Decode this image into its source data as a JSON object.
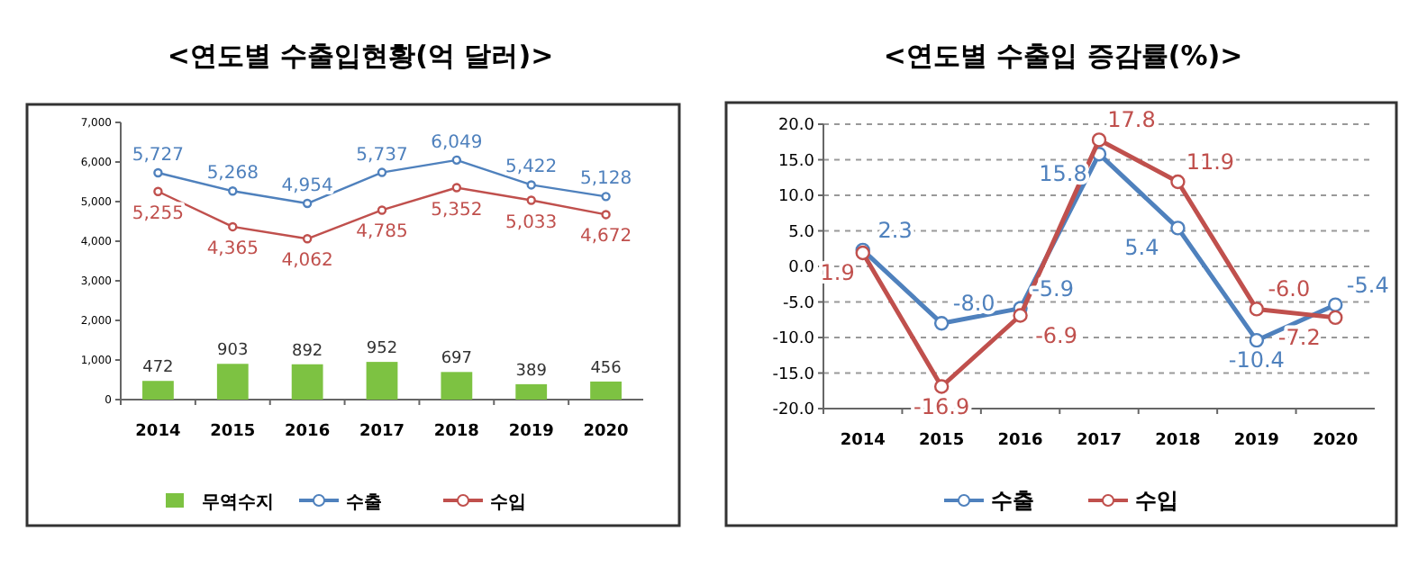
{
  "chart_data": [
    {
      "type": "bar",
      "title": "<연도별 수출입현황(억 달러)>",
      "categories": [
        "2014",
        "2015",
        "2016",
        "2017",
        "2018",
        "2019",
        "2020"
      ],
      "series": [
        {
          "name": "무역수지",
          "type": "bar",
          "color": "#7dc242",
          "values": [
            472,
            903,
            892,
            952,
            697,
            389,
            456
          ],
          "value_labels": [
            "472",
            "903",
            "892",
            "952",
            "697",
            "389",
            "456"
          ]
        },
        {
          "name": "수출",
          "type": "line",
          "color": "#4f81bd",
          "values": [
            5727,
            5268,
            4954,
            5737,
            6049,
            5422,
            5128
          ],
          "value_labels": [
            "5,727",
            "5,268",
            "4,954",
            "5,737",
            "6,049",
            "5,422",
            "5,128"
          ]
        },
        {
          "name": "수입",
          "type": "line",
          "color": "#c0504d",
          "values": [
            5255,
            4365,
            4062,
            4785,
            5352,
            5033,
            4672
          ],
          "value_labels": [
            "5,255",
            "4,365",
            "4,062",
            "4,785",
            "5,352",
            "5,033",
            "4,672"
          ]
        }
      ],
      "ylim": [
        0,
        7000
      ],
      "yticks": [
        0,
        {
          "value": 1000,
          "label": "1,000"
        },
        {
          "value": 2000,
          "label": "2,000"
        },
        {
          "value": 3000,
          "label": "3,000"
        },
        {
          "value": 4000,
          "label": "4,000"
        },
        {
          "value": 5000,
          "label": "5,000"
        },
        {
          "value": 6000,
          "label": "6,000"
        },
        {
          "value": 7000,
          "label": "7,000"
        }
      ],
      "grid": false,
      "legend": "bottom",
      "marker": "circle"
    },
    {
      "type": "line",
      "title": "<연도별 수출입 증감률(%)>",
      "categories": [
        "2014",
        "2015",
        "2016",
        "2017",
        "2018",
        "2019",
        "2020"
      ],
      "series": [
        {
          "name": "수출",
          "color": "#4f81bd",
          "values": [
            2.3,
            -8.0,
            -5.9,
            15.8,
            5.4,
            -10.4,
            -5.4
          ],
          "value_labels": [
            "2.3",
            "-8.0",
            "-5.9",
            "15.8",
            "5.4",
            "-10.4",
            "-5.4"
          ]
        },
        {
          "name": "수입",
          "color": "#c0504d",
          "values": [
            1.9,
            -16.9,
            -6.9,
            17.8,
            11.9,
            -6.0,
            -7.2
          ],
          "value_labels": [
            "1.9",
            "-16.9",
            "-6.9",
            "17.8",
            "11.9",
            "-6.0",
            "-7.2"
          ]
        }
      ],
      "ylim": [
        -20,
        20
      ],
      "yticks": [
        {
          "value": -20,
          "label": "-20.0"
        },
        {
          "value": -15,
          "label": "-15.0"
        },
        {
          "value": -10,
          "label": "-10.0"
        },
        {
          "value": -5,
          "label": "-5.0"
        },
        {
          "value": 0,
          "label": "0.0"
        },
        {
          "value": 5,
          "label": "5.0"
        },
        {
          "value": 10,
          "label": "10.0"
        },
        {
          "value": 15,
          "label": "15.0"
        },
        {
          "value": 20,
          "label": "20.0"
        }
      ],
      "grid": "y",
      "legend": "bottom",
      "marker": "circle"
    }
  ]
}
